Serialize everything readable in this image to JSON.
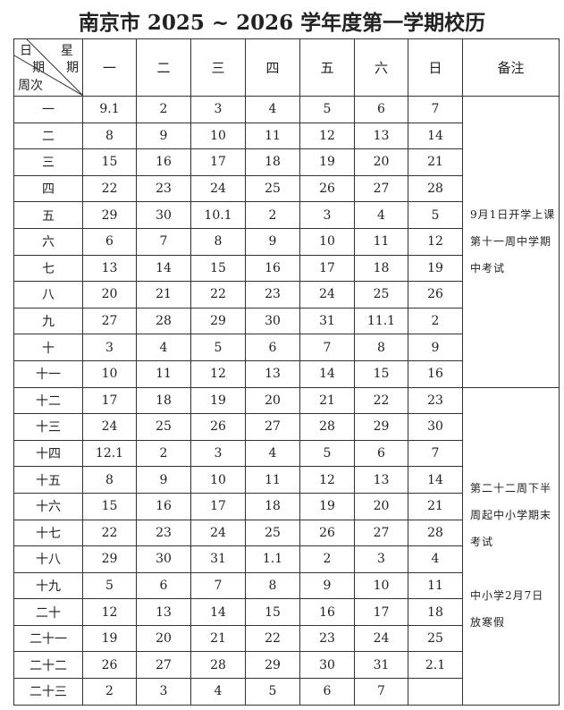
{
  "title": "南京市 2025 ~ 2026 学年度第一学期校历",
  "corner": {
    "top_left": "日",
    "top_right": "星",
    "mid_left": "期",
    "mid_right": "期",
    "bottom": "周次"
  },
  "weekdays": [
    "一",
    "二",
    "三",
    "四",
    "五",
    "六",
    "日"
  ],
  "remark_header": "备注",
  "weeks": [
    {
      "label": "一",
      "days": [
        "9.1",
        "2",
        "3",
        "4",
        "5",
        "6",
        "7"
      ]
    },
    {
      "label": "二",
      "days": [
        "8",
        "9",
        "10",
        "11",
        "12",
        "13",
        "14"
      ]
    },
    {
      "label": "三",
      "days": [
        "15",
        "16",
        "17",
        "18",
        "19",
        "20",
        "21"
      ]
    },
    {
      "label": "四",
      "days": [
        "22",
        "23",
        "24",
        "25",
        "26",
        "27",
        "28"
      ]
    },
    {
      "label": "五",
      "days": [
        "29",
        "30",
        "10.1",
        "2",
        "3",
        "4",
        "5"
      ]
    },
    {
      "label": "六",
      "days": [
        "6",
        "7",
        "8",
        "9",
        "10",
        "11",
        "12"
      ]
    },
    {
      "label": "七",
      "days": [
        "13",
        "14",
        "15",
        "16",
        "17",
        "18",
        "19"
      ]
    },
    {
      "label": "八",
      "days": [
        "20",
        "21",
        "22",
        "23",
        "24",
        "25",
        "26"
      ]
    },
    {
      "label": "九",
      "days": [
        "27",
        "28",
        "29",
        "30",
        "31",
        "11.1",
        "2"
      ]
    },
    {
      "label": "十",
      "days": [
        "3",
        "4",
        "5",
        "6",
        "7",
        "8",
        "9"
      ]
    },
    {
      "label": "十一",
      "days": [
        "10",
        "11",
        "12",
        "13",
        "14",
        "15",
        "16"
      ]
    },
    {
      "label": "十二",
      "days": [
        "17",
        "18",
        "19",
        "20",
        "21",
        "22",
        "23"
      ]
    },
    {
      "label": "十三",
      "days": [
        "24",
        "25",
        "26",
        "27",
        "28",
        "29",
        "30"
      ]
    },
    {
      "label": "十四",
      "days": [
        "12.1",
        "2",
        "3",
        "4",
        "5",
        "6",
        "7"
      ]
    },
    {
      "label": "十五",
      "days": [
        "8",
        "9",
        "10",
        "11",
        "12",
        "13",
        "14"
      ]
    },
    {
      "label": "十六",
      "days": [
        "15",
        "16",
        "17",
        "18",
        "19",
        "20",
        "21"
      ]
    },
    {
      "label": "十七",
      "days": [
        "22",
        "23",
        "24",
        "25",
        "26",
        "27",
        "28"
      ]
    },
    {
      "label": "十八",
      "days": [
        "29",
        "30",
        "31",
        "1.1",
        "2",
        "3",
        "4"
      ]
    },
    {
      "label": "十九",
      "days": [
        "5",
        "6",
        "7",
        "8",
        "9",
        "10",
        "11"
      ]
    },
    {
      "label": "二十",
      "days": [
        "12",
        "13",
        "14",
        "15",
        "16",
        "17",
        "18"
      ]
    },
    {
      "label": "二十一",
      "days": [
        "19",
        "20",
        "21",
        "22",
        "23",
        "24",
        "25"
      ]
    },
    {
      "label": "二十二",
      "days": [
        "26",
        "27",
        "28",
        "29",
        "30",
        "31",
        "2.1"
      ]
    },
    {
      "label": "二十三",
      "days": [
        "2",
        "3",
        "4",
        "5",
        "6",
        "7",
        ""
      ]
    }
  ],
  "remarks": [
    {
      "lines": [
        "9月1日开学上课",
        "第十一周中学期",
        "中考试"
      ]
    },
    {
      "lines": [
        "第二十二周下半",
        "周起中小学期末",
        "考试",
        "",
        "中小学2月7日",
        "放寒假"
      ]
    }
  ]
}
